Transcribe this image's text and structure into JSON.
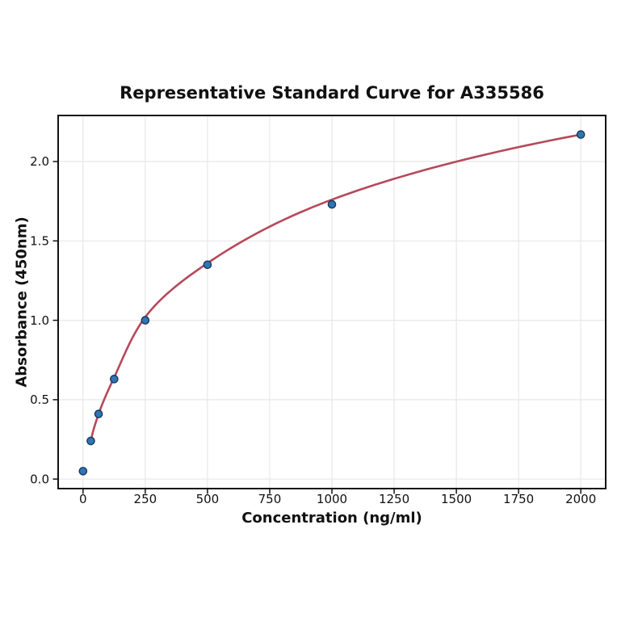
{
  "figure": {
    "background": "#ffffff"
  },
  "chart_data": {
    "type": "scatter",
    "title": "Representative Standard Curve for A335586",
    "xlabel": "Concentration (ng/ml)",
    "ylabel": "Absorbance (450nm)",
    "xlim": [
      -100,
      2100
    ],
    "ylim": [
      -0.06,
      2.29
    ],
    "x_ticks": {
      "values": [
        0,
        250,
        500,
        750,
        1000,
        1250,
        1500,
        1750,
        2000
      ],
      "labels": [
        "0",
        "250",
        "500",
        "750",
        "1000",
        "1250",
        "1500",
        "1750",
        "2000"
      ]
    },
    "y_ticks": {
      "values": [
        0.0,
        0.5,
        1.0,
        1.5,
        2.0
      ],
      "labels": [
        "0.0",
        "0.5",
        "1.0",
        "1.5",
        "2.0"
      ]
    },
    "grid": true,
    "legend_position": "none",
    "points": [
      {
        "x": 0,
        "y": 0.05
      },
      {
        "x": 31.25,
        "y": 0.24
      },
      {
        "x": 62.5,
        "y": 0.41
      },
      {
        "x": 125,
        "y": 0.63
      },
      {
        "x": 250,
        "y": 1.0
      },
      {
        "x": 500,
        "y": 1.35
      },
      {
        "x": 1000,
        "y": 1.73
      },
      {
        "x": 2000,
        "y": 2.17
      }
    ],
    "curve_points": [
      {
        "x": 31.25,
        "y": 0.24
      },
      {
        "x": 62.5,
        "y": 0.41
      },
      {
        "x": 125,
        "y": 0.64
      },
      {
        "x": 250,
        "y": 1.02
      },
      {
        "x": 500,
        "y": 1.36
      },
      {
        "x": 1000,
        "y": 1.76
      },
      {
        "x": 2000,
        "y": 2.17
      }
    ],
    "colors": {
      "point_fill": "#2e76b6",
      "point_edge": "#1b3a57",
      "curve": "#b5495b",
      "grid": "#e7e7e7",
      "spine": "#111111",
      "text": "#111111"
    }
  }
}
